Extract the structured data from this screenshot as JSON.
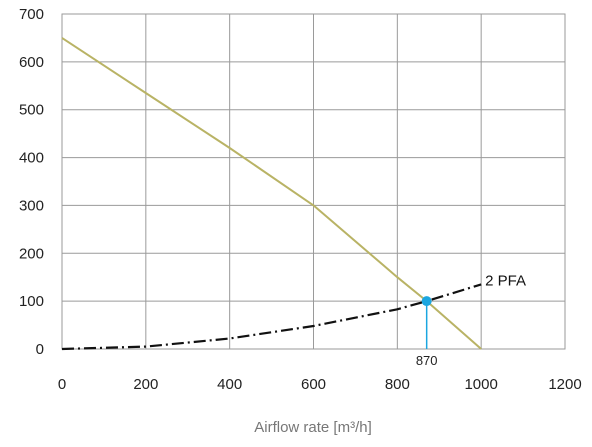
{
  "chart_data": {
    "type": "line",
    "title": "",
    "xlabel": "Airflow rate [m³/h]",
    "ylabel": "",
    "xlim": [
      0,
      1200
    ],
    "ylim": [
      0,
      700
    ],
    "x_ticks": [
      0,
      200,
      400,
      600,
      800,
      1000,
      1200
    ],
    "y_ticks": [
      0,
      100,
      200,
      300,
      400,
      500,
      600,
      700
    ],
    "grid": true,
    "series": [
      {
        "name": "",
        "color": "#b9b365",
        "style": "solid",
        "points": [
          [
            0,
            650
          ],
          [
            200,
            535
          ],
          [
            400,
            420
          ],
          [
            600,
            300
          ],
          [
            800,
            150
          ],
          [
            870,
            100
          ],
          [
            1000,
            0
          ]
        ]
      },
      {
        "name": "2 PFA",
        "color": "#111111",
        "style": "dash-dot",
        "points": [
          [
            0,
            0
          ],
          [
            200,
            5
          ],
          [
            400,
            22
          ],
          [
            600,
            48
          ],
          [
            800,
            83
          ],
          [
            870,
            100
          ],
          [
            1000,
            135
          ]
        ]
      }
    ],
    "operating_point": {
      "x": 870,
      "y": 100,
      "label": "870",
      "color": "#1ba6e0"
    }
  }
}
